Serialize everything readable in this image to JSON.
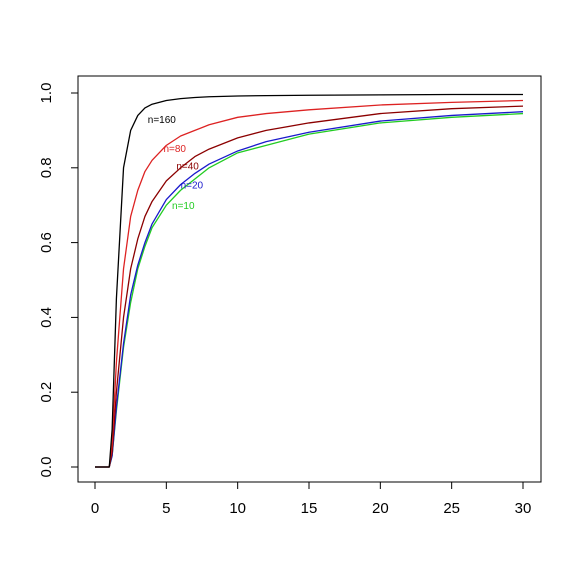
{
  "chart_data": {
    "type": "line",
    "title": "",
    "xlabel": "",
    "ylabel": "",
    "xlim": [
      0,
      30
    ],
    "ylim": [
      0,
      1
    ],
    "xticks": [
      0,
      5,
      10,
      15,
      20,
      25,
      30
    ],
    "xtick_labels": [
      "0",
      "5",
      "10",
      "15",
      "20",
      "25",
      "30"
    ],
    "yticks": [
      0.0,
      0.2,
      0.4,
      0.6,
      0.8,
      1.0
    ],
    "ytick_labels": [
      "0.0",
      "0.2",
      "0.4",
      "0.6",
      "0.8",
      "1.0"
    ],
    "grid": false,
    "series": [
      {
        "name": "n=10",
        "color": "#22cc22",
        "label_at": [
          5.4,
          0.69
        ],
        "x": [
          0,
          1,
          1.2,
          1.5,
          2,
          2.5,
          3,
          3.5,
          4,
          5,
          6,
          7,
          8,
          10,
          12,
          15,
          20,
          25,
          30
        ],
        "y": [
          0,
          0,
          0.03,
          0.15,
          0.32,
          0.44,
          0.53,
          0.59,
          0.64,
          0.7,
          0.74,
          0.77,
          0.8,
          0.84,
          0.86,
          0.89,
          0.92,
          0.935,
          0.945
        ]
      },
      {
        "name": "n=20",
        "color": "#1a1acc",
        "label_at": [
          6.0,
          0.745
        ],
        "x": [
          0,
          1,
          1.2,
          1.5,
          2,
          2.5,
          3,
          3.5,
          4,
          5,
          6,
          7,
          8,
          10,
          12,
          15,
          20,
          25,
          30
        ],
        "y": [
          0,
          0,
          0.03,
          0.16,
          0.33,
          0.46,
          0.54,
          0.6,
          0.65,
          0.715,
          0.755,
          0.785,
          0.81,
          0.845,
          0.87,
          0.895,
          0.925,
          0.94,
          0.95
        ]
      },
      {
        "name": "n=40",
        "color": "#8b0000",
        "label_at": [
          5.7,
          0.795
        ],
        "x": [
          0,
          1,
          1.2,
          1.5,
          2,
          2.5,
          3,
          3.5,
          4,
          5,
          6,
          7,
          8,
          10,
          12,
          15,
          20,
          25,
          30
        ],
        "y": [
          0,
          0,
          0.04,
          0.2,
          0.4,
          0.53,
          0.61,
          0.67,
          0.71,
          0.765,
          0.8,
          0.83,
          0.85,
          0.88,
          0.9,
          0.92,
          0.945,
          0.958,
          0.965
        ]
      },
      {
        "name": "n=80",
        "color": "#dd2222",
        "label_at": [
          4.8,
          0.842
        ],
        "x": [
          0,
          1,
          1.2,
          1.5,
          2,
          2.5,
          3,
          3.5,
          4,
          5,
          6,
          7,
          8,
          10,
          12,
          15,
          20,
          25,
          30
        ],
        "y": [
          0,
          0,
          0.06,
          0.28,
          0.53,
          0.67,
          0.74,
          0.79,
          0.82,
          0.86,
          0.885,
          0.9,
          0.915,
          0.935,
          0.945,
          0.955,
          0.968,
          0.975,
          0.98
        ]
      },
      {
        "name": "n=160",
        "color": "#000000",
        "label_at": [
          3.7,
          0.92
        ],
        "x": [
          0,
          1,
          1.2,
          1.5,
          2,
          2.5,
          3,
          3.5,
          4,
          5,
          6,
          7,
          8,
          10,
          12,
          15,
          20,
          25,
          30
        ],
        "y": [
          0,
          0,
          0.1,
          0.45,
          0.8,
          0.9,
          0.94,
          0.96,
          0.97,
          0.98,
          0.985,
          0.988,
          0.99,
          0.992,
          0.993,
          0.994,
          0.995,
          0.996,
          0.996
        ]
      }
    ]
  }
}
